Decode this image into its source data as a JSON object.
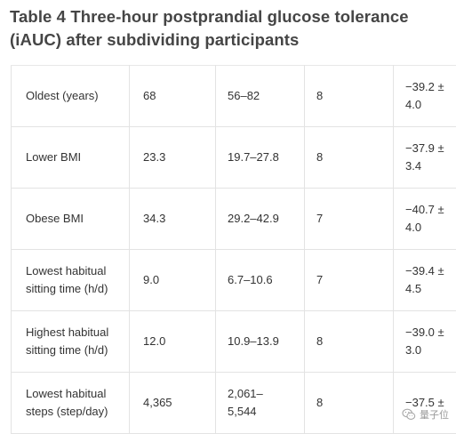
{
  "title": "Table 4  Three-hour postprandial glucose tolerance (iAUC) after subdividing participants",
  "rows": [
    {
      "label": "Oldest (years)",
      "mean": "68",
      "range": "56–82",
      "n": "8",
      "iauc_line1": "−39.2 ±",
      "iauc_line2": "4.0"
    },
    {
      "label": "Lower BMI",
      "mean": "23.3",
      "range": "19.7–27.8",
      "n": "8",
      "iauc_line1": "−37.9 ±",
      "iauc_line2": "3.4"
    },
    {
      "label": "Obese BMI",
      "mean": "34.3",
      "range": "29.2–42.9",
      "n": "7",
      "iauc_line1": "−40.7 ±",
      "iauc_line2": "4.0"
    },
    {
      "label_line1": "Lowest habitual",
      "label_line2": "sitting time (h/d)",
      "mean": "9.0",
      "range": "6.7–10.6",
      "n": "7",
      "iauc_line1": "−39.4 ±",
      "iauc_line2": "4.5"
    },
    {
      "label_line1": "Highest habitual",
      "label_line2": "sitting time (h/d)",
      "mean": "12.0",
      "range": "10.9–13.9",
      "n": "8",
      "iauc_line1": "−39.0 ±",
      "iauc_line2": "3.0"
    },
    {
      "label_line1": "Lowest habitual",
      "label_line2": "steps (step/day)",
      "mean": "4,365",
      "range_line1": "2,061–",
      "range_line2": "5,544",
      "n": "8",
      "iauc_line1": "−37.5 ±",
      "iauc_line2": ""
    }
  ],
  "watermark": {
    "text": "量子位",
    "icon": "wechat-icon"
  }
}
